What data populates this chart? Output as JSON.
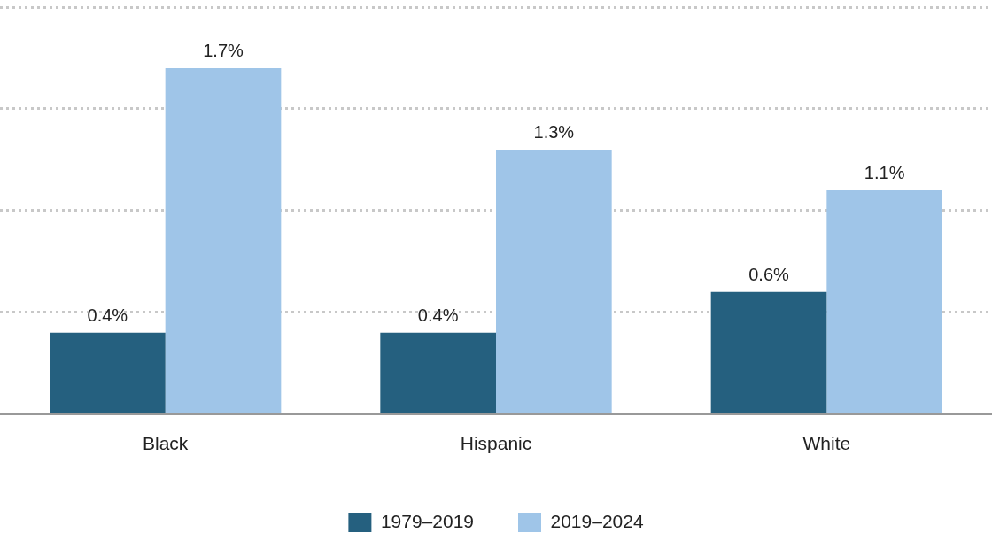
{
  "chart_data": {
    "type": "bar",
    "categories": [
      "Black",
      "Hispanic",
      "White"
    ],
    "series": [
      {
        "name": "1979–2019",
        "color": "#25607f",
        "values": [
          0.4,
          0.4,
          0.6
        ],
        "value_labels": [
          "0.4%",
          "0.4%",
          "0.6%"
        ]
      },
      {
        "name": "2019–2024",
        "color": "#9fc5e8",
        "values": [
          1.7,
          1.3,
          1.1
        ],
        "value_labels": [
          "1.7%",
          "1.3%",
          "1.1%"
        ]
      }
    ],
    "ylim": [
      0,
      2.0
    ],
    "yticks": [
      {
        "value": 0,
        "label": null
      },
      {
        "value": 0.5,
        "label": null
      },
      {
        "value": 1.0,
        "label": null
      },
      {
        "value": 1.5,
        "label": null
      },
      {
        "value": 2.0,
        "label": null
      }
    ],
    "grid": "y",
    "legend": "bottom"
  }
}
